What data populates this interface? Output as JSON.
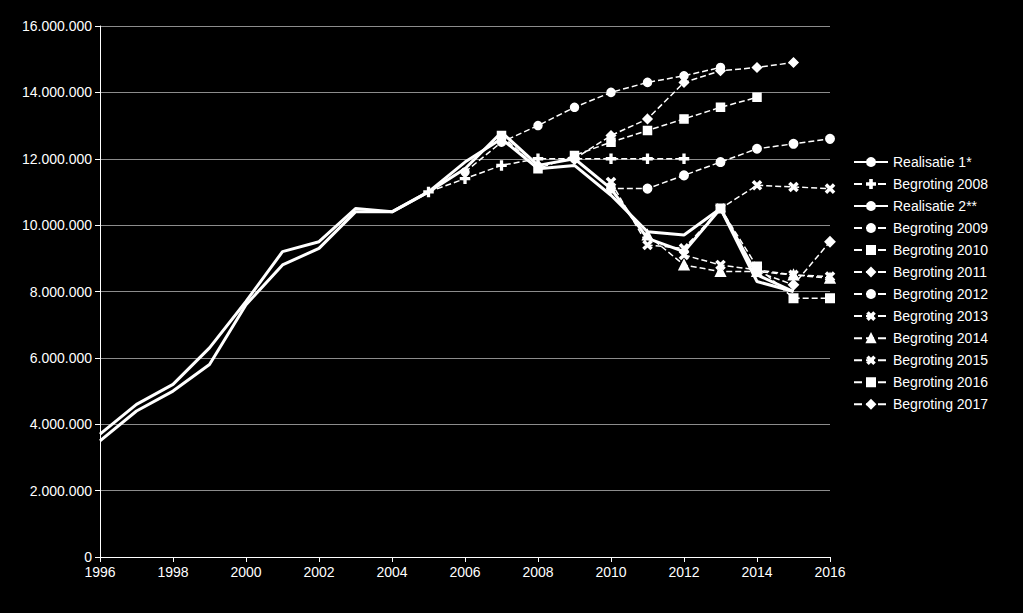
{
  "chart_data": {
    "type": "line",
    "x": [
      1996,
      1997,
      1998,
      1999,
      2000,
      2001,
      2002,
      2003,
      2004,
      2005,
      2006,
      2007,
      2008,
      2009,
      2010,
      2011,
      2012,
      2013,
      2014,
      2015,
      2016
    ],
    "xlim": [
      1996,
      2016
    ],
    "xticks": [
      1996,
      1998,
      2000,
      2002,
      2004,
      2006,
      2008,
      2010,
      2012,
      2014,
      2016
    ],
    "ylim": [
      0,
      16000000
    ],
    "yticks": [
      {
        "value": 0,
        "label": "0"
      },
      {
        "value": 2000000,
        "label": "2.000.000"
      },
      {
        "value": 4000000,
        "label": "4.000.000"
      },
      {
        "value": 6000000,
        "label": "6.000.000"
      },
      {
        "value": 8000000,
        "label": "8.000.000"
      },
      {
        "value": 10000000,
        "label": "10.000.000"
      },
      {
        "value": 12000000,
        "label": "12.000.000"
      },
      {
        "value": 14000000,
        "label": "14.000.000"
      },
      {
        "value": 16000000,
        "label": "16.000.000"
      }
    ],
    "grid": true,
    "legend": "right",
    "series": [
      {
        "name": "Realisatie 1*",
        "color": "#ffffff",
        "line_style": "solid",
        "marker": "none",
        "values": [
          3700000,
          4600000,
          5200000,
          6300000,
          7700000,
          9200000,
          9500000,
          10500000,
          10400000,
          11000000,
          11900000,
          12600000,
          11700000,
          11800000,
          10900000,
          9800000,
          9700000,
          10500000,
          8300000,
          8000000,
          null
        ]
      },
      {
        "name": "Begroting 2008",
        "color": "#ffffff",
        "line_style": "dashed",
        "marker": "plus",
        "values": [
          null,
          null,
          null,
          null,
          null,
          null,
          null,
          null,
          null,
          11000000,
          11400000,
          11800000,
          12000000,
          12000000,
          12000000,
          12000000,
          12000000,
          null,
          null,
          null,
          null
        ]
      },
      {
        "name": "Realisatie 2**",
        "color": "#ffffff",
        "line_style": "solid",
        "marker": "none",
        "values": [
          3500000,
          4400000,
          5000000,
          5800000,
          7600000,
          8800000,
          9300000,
          10400000,
          10400000,
          11000000,
          11700000,
          12800000,
          11800000,
          12000000,
          11100000,
          9600000,
          9200000,
          10500000,
          8500000,
          8000000,
          null
        ]
      },
      {
        "name": "Begroting 2009",
        "color": "#ffffff",
        "line_style": "dashed",
        "marker": "circle",
        "values": [
          null,
          null,
          null,
          null,
          null,
          null,
          null,
          null,
          null,
          null,
          11600000,
          12500000,
          13000000,
          13550000,
          14000000,
          14300000,
          14500000,
          14750000,
          null,
          null,
          null
        ]
      },
      {
        "name": "Begroting 2010",
        "color": "#ffffff",
        "line_style": "dashed",
        "marker": "square",
        "values": [
          null,
          null,
          null,
          null,
          null,
          null,
          null,
          null,
          null,
          null,
          null,
          12700000,
          11700000,
          12100000,
          12500000,
          12850000,
          13200000,
          13550000,
          13850000,
          null,
          null
        ]
      },
      {
        "name": "Begroting 2011",
        "color": "#ffffff",
        "line_style": "dashed",
        "marker": "diamond",
        "values": [
          null,
          null,
          null,
          null,
          null,
          null,
          null,
          null,
          null,
          null,
          null,
          null,
          11800000,
          12000000,
          12700000,
          13200000,
          14300000,
          14650000,
          14750000,
          14900000,
          null
        ]
      },
      {
        "name": "Begroting 2012",
        "color": "#ffffff",
        "line_style": "dashed",
        "marker": "circle-open",
        "values": [
          null,
          null,
          null,
          null,
          null,
          null,
          null,
          null,
          null,
          null,
          null,
          null,
          null,
          12000000,
          11100000,
          11100000,
          11500000,
          11900000,
          12300000,
          12450000,
          12600000
        ]
      },
      {
        "name": "Begroting 2013",
        "color": "#ffffff",
        "line_style": "dashed",
        "marker": "x",
        "values": [
          null,
          null,
          null,
          null,
          null,
          null,
          null,
          null,
          null,
          null,
          null,
          null,
          null,
          null,
          11300000,
          9400000,
          9300000,
          10500000,
          11200000,
          11150000,
          11100000
        ]
      },
      {
        "name": "Begroting 2014",
        "color": "#ffffff",
        "line_style": "dashed",
        "marker": "triangle-open",
        "values": [
          null,
          null,
          null,
          null,
          null,
          null,
          null,
          null,
          null,
          null,
          null,
          null,
          null,
          null,
          null,
          9700000,
          8800000,
          8600000,
          8600000,
          8500000,
          8400000
        ]
      },
      {
        "name": "Begroting 2015",
        "color": "#ffffff",
        "line_style": "dashed",
        "marker": "x",
        "values": [
          null,
          null,
          null,
          null,
          null,
          null,
          null,
          null,
          null,
          null,
          null,
          null,
          null,
          null,
          null,
          null,
          9100000,
          8800000,
          8650000,
          8500000,
          8450000
        ]
      },
      {
        "name": "Begroting 2016",
        "color": "#ffffff",
        "line_style": "dashed",
        "marker": "square-open",
        "values": [
          null,
          null,
          null,
          null,
          null,
          null,
          null,
          null,
          null,
          null,
          null,
          null,
          null,
          null,
          null,
          null,
          null,
          10500000,
          8750000,
          7800000,
          7800000
        ]
      },
      {
        "name": "Begroting 2017",
        "color": "#ffffff",
        "line_style": "dashed",
        "marker": "diamond-open",
        "values": [
          null,
          null,
          null,
          null,
          null,
          null,
          null,
          null,
          null,
          null,
          null,
          null,
          null,
          null,
          null,
          null,
          null,
          null,
          8600000,
          8200000,
          9500000
        ]
      }
    ]
  }
}
